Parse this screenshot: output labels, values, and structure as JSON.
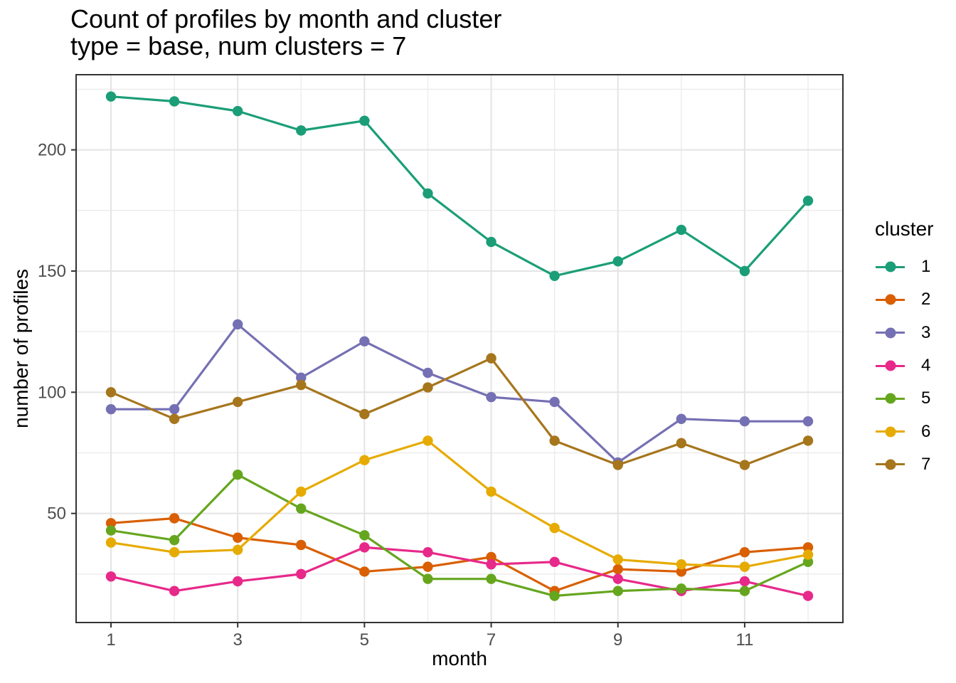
{
  "title": {
    "line1": "Count of profiles by month and cluster",
    "line2": "type = base, num clusters = 7"
  },
  "axes": {
    "x_label": "month",
    "y_label": "number of profiles",
    "x_ticks": [
      1,
      3,
      5,
      7,
      9,
      11
    ],
    "y_ticks": [
      50,
      100,
      150,
      200
    ]
  },
  "legend": {
    "title": "cluster",
    "position": "right",
    "entries": [
      {
        "label": "1",
        "color": "#1B9E77"
      },
      {
        "label": "2",
        "color": "#D95F02"
      },
      {
        "label": "3",
        "color": "#7570B3"
      },
      {
        "label": "4",
        "color": "#E7298A"
      },
      {
        "label": "5",
        "color": "#66A61E"
      },
      {
        "label": "6",
        "color": "#E6AB02"
      },
      {
        "label": "7",
        "color": "#A6761D"
      }
    ]
  },
  "colors": {
    "panel_background": "#FFFFFF",
    "panel_border": "#333333",
    "grid_major": "#E4E4E4",
    "grid_minor": "#EDEDED",
    "tick_mark": "#333333",
    "tick_label": "#4D4D4D",
    "text": "#000000"
  },
  "chart_data": {
    "type": "line",
    "title": "Count of profiles by month and cluster",
    "subtitle": "type = base, num clusters = 7",
    "xlabel": "month",
    "ylabel": "number of profiles",
    "x": [
      1,
      2,
      3,
      4,
      5,
      6,
      7,
      8,
      9,
      10,
      11,
      12
    ],
    "series": [
      {
        "name": "1",
        "color": "#1B9E77",
        "values": [
          222,
          220,
          216,
          208,
          212,
          182,
          162,
          148,
          154,
          167,
          150,
          179
        ]
      },
      {
        "name": "2",
        "color": "#D95F02",
        "values": [
          46,
          48,
          40,
          37,
          26,
          28,
          32,
          18,
          27,
          26,
          34,
          36
        ]
      },
      {
        "name": "3",
        "color": "#7570B3",
        "values": [
          93,
          93,
          128,
          106,
          121,
          108,
          98,
          96,
          71,
          89,
          88,
          88
        ]
      },
      {
        "name": "4",
        "color": "#E7298A",
        "values": [
          24,
          18,
          22,
          25,
          36,
          34,
          29,
          30,
          23,
          18,
          22,
          16
        ]
      },
      {
        "name": "5",
        "color": "#66A61E",
        "values": [
          43,
          39,
          66,
          52,
          41,
          23,
          23,
          16,
          18,
          19,
          18,
          30
        ]
      },
      {
        "name": "6",
        "color": "#E6AB02",
        "values": [
          38,
          34,
          35,
          59,
          72,
          80,
          59,
          44,
          31,
          29,
          28,
          33
        ]
      },
      {
        "name": "7",
        "color": "#A6761D",
        "values": [
          100,
          89,
          96,
          103,
          91,
          102,
          114,
          80,
          70,
          79,
          70,
          80
        ]
      }
    ],
    "xlim": [
      0.45,
      12.55
    ],
    "ylim": [
      5,
      231
    ],
    "x_major_breaks": [
      1,
      3,
      5,
      7,
      9,
      11
    ],
    "x_minor_breaks": [
      2,
      4,
      6,
      8,
      10,
      12
    ],
    "y_major_breaks": [
      50,
      100,
      150,
      200
    ],
    "y_minor_breaks": [
      25,
      75,
      125,
      175,
      225
    ],
    "grid": true,
    "legend_position": "right"
  }
}
